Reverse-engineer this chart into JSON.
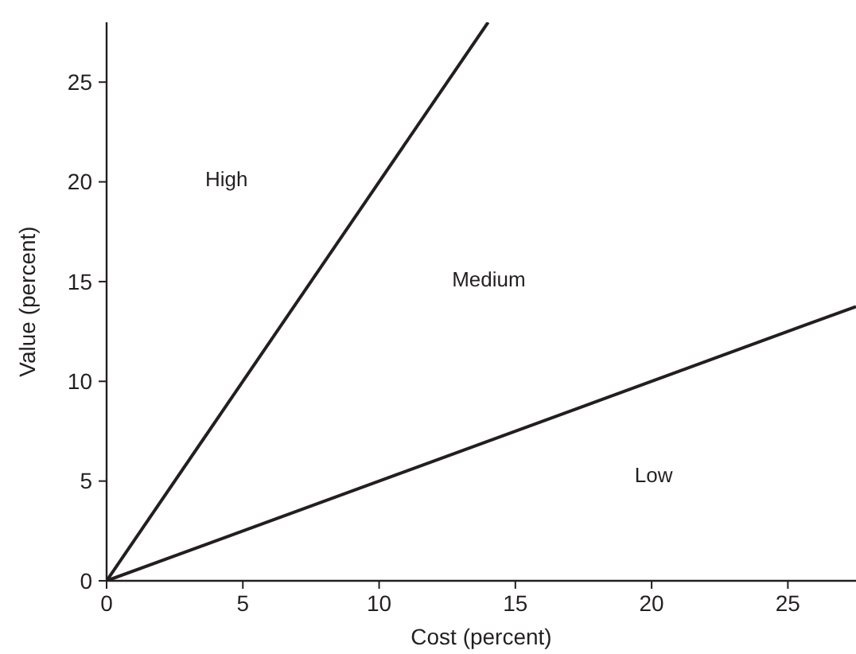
{
  "chart_data": {
    "type": "line",
    "xlabel": "Cost (percent)",
    "ylabel": "Value (percent)",
    "xlim": [
      0,
      27.5
    ],
    "ylim": [
      0,
      28
    ],
    "xticks": [
      0,
      5,
      10,
      15,
      20,
      25
    ],
    "yticks": [
      0,
      5,
      10,
      15,
      20,
      25
    ],
    "series": [
      {
        "color": "#231f20",
        "x": [
          0,
          14
        ],
        "values": [
          0,
          28
        ]
      },
      {
        "color": "#231f20",
        "x": [
          0,
          27.5
        ],
        "values": [
          0,
          13.75
        ]
      }
    ],
    "annotations": [
      "High",
      "Medium",
      "Low"
    ],
    "grid": false,
    "marker": "none",
    "line_style": "solid"
  }
}
